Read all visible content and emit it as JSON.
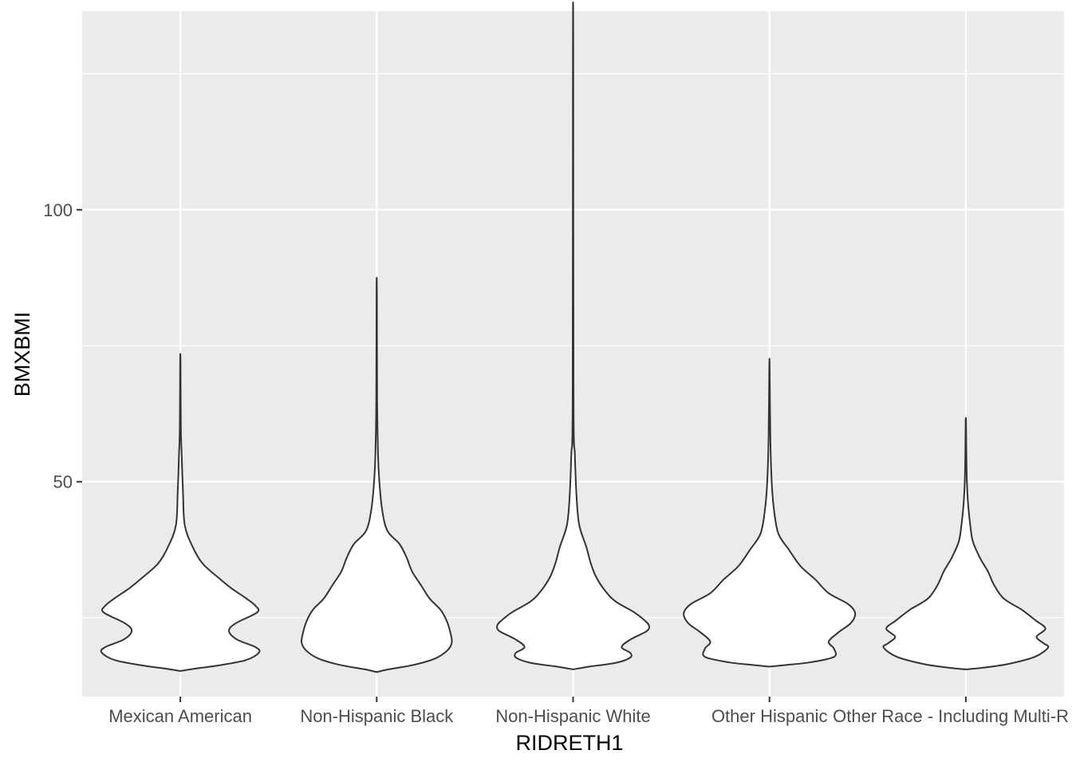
{
  "chart_data": {
    "type": "violin",
    "xlabel": "RIDRETH1",
    "ylabel": "BMXBMI",
    "categories": [
      "Mexican American",
      "Non-Hispanic Black",
      "Non-Hispanic White",
      "Other Hispanic",
      "Other Race - Including Multi-R"
    ],
    "y_ticks": [
      50,
      100
    ],
    "ylim": [
      10.5,
      136.5
    ],
    "grid": true,
    "legend": "none",
    "colors": {
      "panel": "#ebebeb",
      "grid": "#ffffff",
      "violin_fill": "#ffffff",
      "violin_stroke": "#333333"
    },
    "series": [
      {
        "category": "Mexican American",
        "min": 15.2,
        "max": 72.0,
        "profile": [
          [
            15.2,
            0.0
          ],
          [
            15.6,
            0.15
          ],
          [
            16.2,
            0.42
          ],
          [
            17.2,
            0.74
          ],
          [
            18.6,
            0.89
          ],
          [
            19.6,
            0.85
          ],
          [
            21.0,
            0.64
          ],
          [
            22.6,
            0.55
          ],
          [
            24.0,
            0.63
          ],
          [
            26.0,
            0.87
          ],
          [
            27.2,
            0.85
          ],
          [
            28.5,
            0.75
          ],
          [
            30.5,
            0.57
          ],
          [
            32.5,
            0.42
          ],
          [
            35.0,
            0.25
          ],
          [
            38.0,
            0.14
          ],
          [
            42.0,
            0.05
          ],
          [
            48.0,
            0.03
          ],
          [
            55.0,
            0.015
          ],
          [
            60.0,
            0.006
          ],
          [
            72.0,
            0.002
          ]
        ]
      },
      {
        "category": "Non-Hispanic Black",
        "min": 15.0,
        "max": 85.0,
        "profile": [
          [
            15.0,
            0.0
          ],
          [
            15.5,
            0.13
          ],
          [
            16.3,
            0.41
          ],
          [
            17.5,
            0.66
          ],
          [
            19.0,
            0.8
          ],
          [
            20.5,
            0.85
          ],
          [
            22.5,
            0.83
          ],
          [
            24.5,
            0.79
          ],
          [
            26.5,
            0.72
          ],
          [
            28.5,
            0.6
          ],
          [
            31.0,
            0.5
          ],
          [
            33.5,
            0.4
          ],
          [
            36.0,
            0.34
          ],
          [
            38.5,
            0.26
          ],
          [
            41.0,
            0.12
          ],
          [
            45.0,
            0.06
          ],
          [
            50.0,
            0.03
          ],
          [
            55.0,
            0.015
          ],
          [
            65.0,
            0.005
          ],
          [
            85.0,
            0.002
          ]
        ]
      },
      {
        "category": "Non-Hispanic White",
        "min": 15.5,
        "max": 130.0,
        "profile": [
          [
            15.5,
            0.0
          ],
          [
            16.0,
            0.18
          ],
          [
            16.7,
            0.48
          ],
          [
            17.6,
            0.64
          ],
          [
            18.5,
            0.65
          ],
          [
            19.6,
            0.55
          ],
          [
            21.0,
            0.65
          ],
          [
            22.5,
            0.83
          ],
          [
            23.5,
            0.86
          ],
          [
            24.5,
            0.81
          ],
          [
            26.0,
            0.69
          ],
          [
            28.0,
            0.48
          ],
          [
            30.0,
            0.36
          ],
          [
            32.5,
            0.26
          ],
          [
            35.0,
            0.2
          ],
          [
            38.0,
            0.15
          ],
          [
            42.0,
            0.07
          ],
          [
            47.0,
            0.04
          ],
          [
            55.0,
            0.02
          ],
          [
            65.0,
            0.005
          ],
          [
            130.0,
            0.002
          ]
        ]
      },
      {
        "category": "Other Hispanic",
        "min": 16.0,
        "max": 71.0,
        "profile": [
          [
            16.0,
            0.0
          ],
          [
            16.3,
            0.18
          ],
          [
            16.8,
            0.46
          ],
          [
            17.8,
            0.73
          ],
          [
            19.3,
            0.73
          ],
          [
            20.6,
            0.67
          ],
          [
            22.3,
            0.78
          ],
          [
            24.0,
            0.92
          ],
          [
            25.8,
            0.97
          ],
          [
            27.5,
            0.89
          ],
          [
            29.5,
            0.67
          ],
          [
            32.0,
            0.52
          ],
          [
            34.5,
            0.35
          ],
          [
            37.5,
            0.22
          ],
          [
            40.5,
            0.1
          ],
          [
            45.0,
            0.05
          ],
          [
            50.0,
            0.025
          ],
          [
            58.0,
            0.01
          ],
          [
            71.0,
            0.002
          ]
        ]
      },
      {
        "category": "Other Race - Including Multi-R",
        "min": 15.5,
        "max": 61.0,
        "profile": [
          [
            15.5,
            0.0
          ],
          [
            15.8,
            0.19
          ],
          [
            16.5,
            0.48
          ],
          [
            17.8,
            0.78
          ],
          [
            19.5,
            0.93
          ],
          [
            20.3,
            0.88
          ],
          [
            21.5,
            0.8
          ],
          [
            23.0,
            0.9
          ],
          [
            24.5,
            0.79
          ],
          [
            26.5,
            0.63
          ],
          [
            28.5,
            0.43
          ],
          [
            31.0,
            0.32
          ],
          [
            33.5,
            0.25
          ],
          [
            36.0,
            0.16
          ],
          [
            39.0,
            0.08
          ],
          [
            42.0,
            0.05
          ],
          [
            46.0,
            0.025
          ],
          [
            50.0,
            0.012
          ],
          [
            55.0,
            0.006
          ],
          [
            61.0,
            0.002
          ]
        ]
      }
    ]
  }
}
